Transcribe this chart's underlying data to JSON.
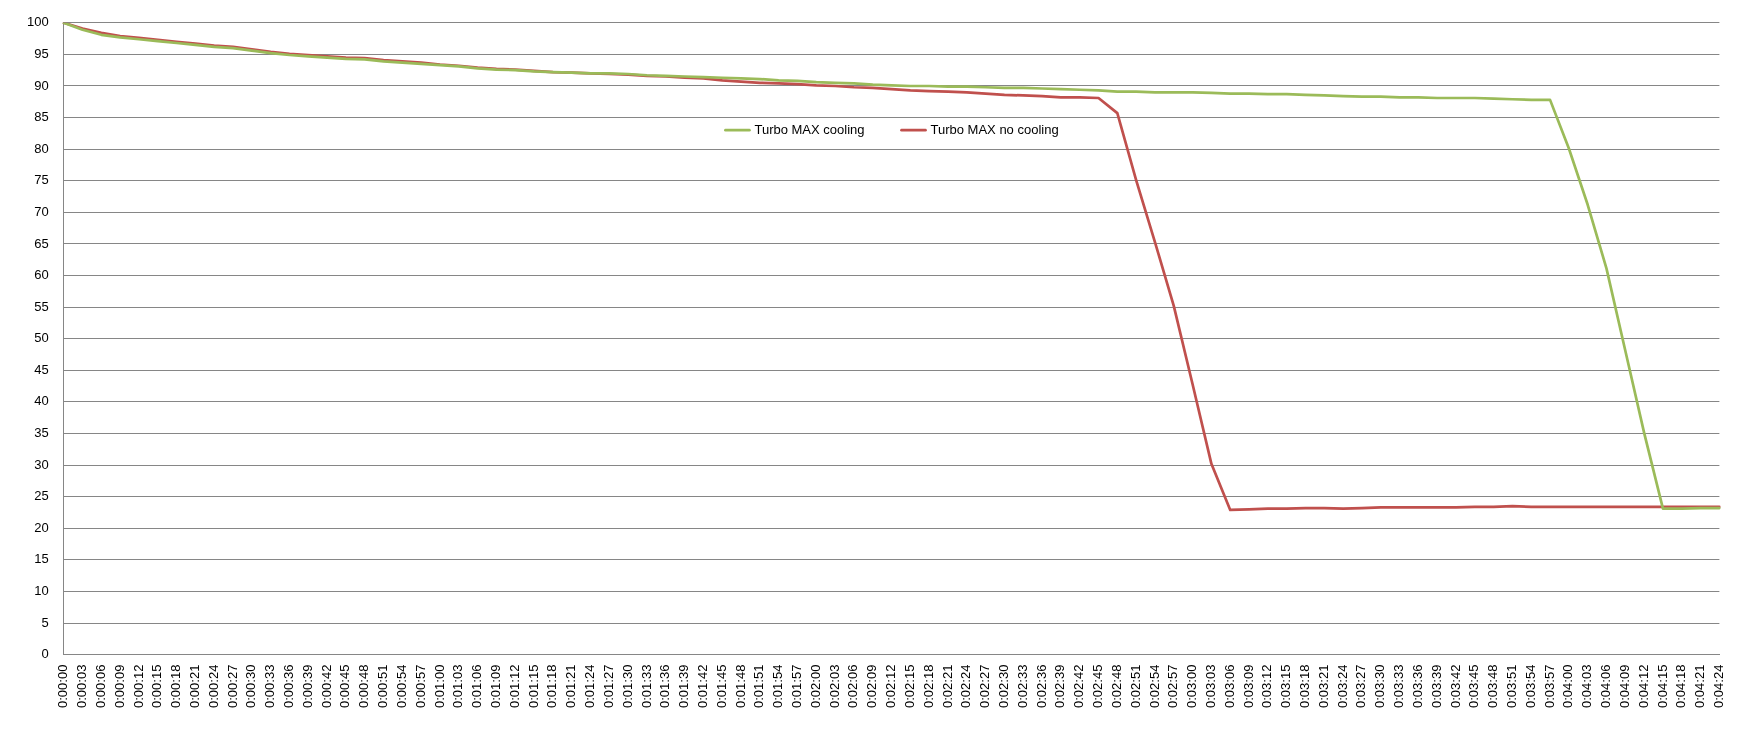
{
  "chart_data": {
    "type": "line",
    "categories": [
      "0:00:00",
      "0:00:03",
      "0:00:06",
      "0:00:09",
      "0:00:12",
      "0:00:15",
      "0:00:18",
      "0:00:21",
      "0:00:24",
      "0:00:27",
      "0:00:30",
      "0:00:33",
      "0:00:36",
      "0:00:39",
      "0:00:42",
      "0:00:45",
      "0:00:48",
      "0:00:51",
      "0:00:54",
      "0:00:57",
      "0:01:00",
      "0:01:03",
      "0:01:06",
      "0:01:09",
      "0:01:12",
      "0:01:15",
      "0:01:18",
      "0:01:21",
      "0:01:24",
      "0:01:27",
      "0:01:30",
      "0:01:33",
      "0:01:36",
      "0:01:39",
      "0:01:42",
      "0:01:45",
      "0:01:48",
      "0:01:51",
      "0:01:54",
      "0:01:57",
      "0:02:00",
      "0:02:03",
      "0:02:06",
      "0:02:09",
      "0:02:12",
      "0:02:15",
      "0:02:18",
      "0:02:21",
      "0:02:24",
      "0:02:27",
      "0:02:30",
      "0:02:33",
      "0:02:36",
      "0:02:39",
      "0:02:42",
      "0:02:45",
      "0:02:48",
      "0:02:51",
      "0:02:54",
      "0:02:57",
      "0:03:00",
      "0:03:03",
      "0:03:06",
      "0:03:09",
      "0:03:12",
      "0:03:15",
      "0:03:18",
      "0:03:21",
      "0:03:24",
      "0:03:27",
      "0:03:30",
      "0:03:33",
      "0:03:36",
      "0:03:39",
      "0:03:42",
      "0:03:45",
      "0:03:48",
      "0:03:51",
      "0:03:54",
      "0:03:57",
      "0:04:00",
      "0:04:03",
      "0:04:06",
      "0:04:09",
      "0:04:12",
      "0:04:15",
      "0:04:18",
      "0:04:21",
      "0:04:24"
    ],
    "series": [
      {
        "name": "Turbo MAX cooling",
        "color": "#9bbb59",
        "values": [
          100,
          98.9,
          98.1,
          97.7,
          97.4,
          97.1,
          96.8,
          96.5,
          96.2,
          96.0,
          95.6,
          95.2,
          94.9,
          94.7,
          94.5,
          94.3,
          94.2,
          93.9,
          93.7,
          93.5,
          93.3,
          93.1,
          92.8,
          92.6,
          92.5,
          92.3,
          92.2,
          92.1,
          92.0,
          92.0,
          91.9,
          91.7,
          91.6,
          91.5,
          91.4,
          91.3,
          91.2,
          91.1,
          90.9,
          90.8,
          90.6,
          90.5,
          90.4,
          90.2,
          90.1,
          90.0,
          90.0,
          89.9,
          89.9,
          89.8,
          89.7,
          89.7,
          89.6,
          89.5,
          89.4,
          89.3,
          89.1,
          89.1,
          89.0,
          89.0,
          89.0,
          88.9,
          88.8,
          88.8,
          88.7,
          88.7,
          88.6,
          88.5,
          88.4,
          88.3,
          88.3,
          88.2,
          88.2,
          88.1,
          88.1,
          88.1,
          88.0,
          87.9,
          87.8,
          87.8,
          80.1,
          71.2,
          61.1,
          48.1,
          35.1,
          23.1,
          23.1,
          23.2,
          23.2
        ]
      },
      {
        "name": "Turbo MAX no cooling",
        "color": "#c0504d",
        "values": [
          100,
          99.1,
          98.4,
          97.9,
          97.6,
          97.3,
          97.0,
          96.7,
          96.4,
          96.2,
          95.8,
          95.4,
          95.1,
          94.9,
          94.7,
          94.5,
          94.4,
          94.1,
          93.9,
          93.7,
          93.4,
          93.2,
          92.9,
          92.7,
          92.6,
          92.4,
          92.2,
          92.1,
          92.0,
          91.9,
          91.8,
          91.6,
          91.5,
          91.3,
          91.2,
          90.9,
          90.7,
          90.5,
          90.4,
          90.3,
          90.1,
          90.0,
          89.8,
          89.7,
          89.5,
          89.3,
          89.2,
          89.1,
          89.0,
          88.8,
          88.6,
          88.5,
          88.4,
          88.2,
          88.2,
          88.1,
          85.7,
          75.1,
          65.3,
          55.2,
          42.8,
          30.2,
          22.9,
          23.0,
          23.1,
          23.1,
          23.2,
          23.2,
          23.1,
          23.2,
          23.3,
          23.3,
          23.3,
          23.3,
          23.3,
          23.4,
          23.4,
          23.5,
          23.4,
          23.4,
          23.4,
          23.4,
          23.4,
          23.4,
          23.4,
          23.4,
          23.4,
          23.4,
          23.4
        ]
      }
    ],
    "ylim": [
      0,
      100
    ],
    "yticks": [
      0,
      5,
      10,
      15,
      20,
      25,
      30,
      35,
      40,
      45,
      50,
      55,
      60,
      65,
      70,
      75,
      80,
      85,
      90,
      95,
      100
    ],
    "grid": "y",
    "legend": "top"
  }
}
